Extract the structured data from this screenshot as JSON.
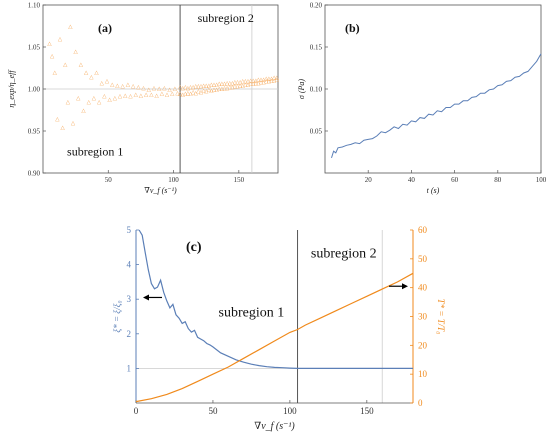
{
  "chart_data": [
    {
      "id": "a",
      "type": "scatter",
      "panel_label": "(a)",
      "ylabel": "η_exp/η_eff",
      "xlabel": "∇v_f (s⁻¹)",
      "xlim": [
        0,
        180
      ],
      "ylim": [
        0.9,
        1.1
      ],
      "xticks": [
        50,
        100,
        150
      ],
      "yticks": [
        0.9,
        0.95,
        1.0,
        1.05,
        1.1
      ],
      "ytick_labels": [
        "0.90",
        "0.95",
        "1.00",
        "1.05",
        "1.10"
      ],
      "marker": "△",
      "color": "#F5A04A",
      "grid_x": [
        160
      ],
      "reference_line_y": 1.0,
      "divider_x": 105,
      "annotations": [
        {
          "text": "subregion 1",
          "x": 40,
          "y": 0.921
        },
        {
          "text": "subregion 2",
          "x": 140,
          "y": 1.08
        }
      ],
      "series": [
        {
          "x": [
            5,
            7,
            9,
            11,
            13,
            15,
            17,
            19,
            21,
            23,
            25,
            27,
            29,
            31,
            33,
            35,
            37,
            39,
            41,
            43,
            45,
            47,
            49,
            51,
            53,
            55,
            57,
            59,
            61,
            63,
            65,
            67,
            69,
            71,
            73,
            75,
            77,
            79,
            81,
            83,
            85,
            87,
            89,
            91,
            93,
            95,
            97,
            99,
            101,
            103,
            105,
            107,
            109,
            111,
            113,
            115,
            117,
            119,
            121,
            123,
            125,
            127,
            129,
            131,
            133,
            135,
            137,
            139,
            141,
            143,
            145,
            147,
            149,
            151,
            153,
            155,
            157,
            159,
            161,
            163,
            165,
            167,
            169,
            171,
            173,
            175,
            177,
            179
          ],
          "y": [
            1.055,
            1.04,
            1.02,
            0.965,
            1.06,
            0.955,
            1.03,
            0.985,
            1.075,
            0.96,
            1.045,
            0.99,
            1.03,
            0.975,
            1.02,
            0.985,
            1.015,
            0.99,
            1.02,
            0.985,
            1.008,
            0.992,
            1.01,
            0.988,
            1.006,
            0.99,
            1.005,
            0.992,
            1.004,
            0.993,
            1.006,
            0.992,
            1.004,
            0.994,
            1.003,
            0.993,
            1.002,
            0.994,
            1.0,
            0.994,
            1.002,
            0.993,
            1.001,
            0.995,
            1.002,
            0.994,
            1.0,
            0.995,
            1.001,
            0.996,
            0.995,
            0.994,
            0.995,
            0.996,
            0.995,
            0.997,
            0.996,
            0.998,
            0.997,
            0.999,
            0.998,
            1.0,
            0.999,
            1.0,
            1.0,
            1.001,
            1.001,
            1.002,
            1.002,
            1.003,
            1.003,
            1.004,
            1.004,
            1.005,
            1.005,
            1.006,
            1.006,
            1.007,
            1.007,
            1.008,
            1.008,
            1.009,
            1.009,
            1.01,
            1.01,
            1.011,
            1.011,
            1.012
          ]
        },
        {
          "x": [
            105,
            107,
            109,
            111,
            113,
            115,
            117,
            119,
            121,
            123,
            125,
            127,
            129,
            131,
            133,
            135,
            137,
            139,
            141,
            143,
            145,
            147,
            149,
            151,
            153,
            155,
            157,
            159,
            161,
            163,
            165,
            167,
            169,
            171,
            173,
            175,
            177,
            179
          ],
          "y": [
            1.003,
            1.002,
            1.003,
            1.002,
            1.003,
            1.003,
            1.004,
            1.004,
            1.004,
            1.005,
            1.005,
            1.005,
            1.006,
            1.006,
            1.006,
            1.007,
            1.007,
            1.007,
            1.008,
            1.008,
            1.008,
            1.009,
            1.009,
            1.009,
            1.01,
            1.01,
            1.01,
            1.011,
            1.011,
            1.011,
            1.012,
            1.012,
            1.012,
            1.013,
            1.013,
            1.013,
            1.014,
            1.014
          ]
        }
      ]
    },
    {
      "id": "b",
      "type": "line",
      "panel_label": "(b)",
      "ylabel": "σ (Pa)",
      "xlabel": "t (s)",
      "xlim": [
        0,
        100
      ],
      "ylim": [
        0,
        0.2
      ],
      "xticks": [
        20,
        40,
        60,
        80,
        100
      ],
      "yticks": [
        0.05,
        0.1,
        0.15,
        0.2
      ],
      "ytick_labels": [
        "0.05",
        "0.10",
        "0.15",
        "0.20"
      ],
      "color": "#5B7FB7",
      "series": [
        {
          "x": [
            3,
            4,
            5,
            6,
            8,
            10,
            12,
            14,
            16,
            18,
            20,
            22,
            24,
            26,
            28,
            30,
            32,
            34,
            36,
            38,
            40,
            42,
            44,
            46,
            48,
            50,
            52,
            54,
            56,
            58,
            60,
            62,
            64,
            66,
            68,
            70,
            72,
            74,
            76,
            78,
            80,
            82,
            84,
            86,
            88,
            90,
            92,
            94,
            96,
            98,
            100
          ],
          "y": [
            0.018,
            0.026,
            0.024,
            0.03,
            0.031,
            0.033,
            0.034,
            0.036,
            0.035,
            0.039,
            0.04,
            0.041,
            0.044,
            0.049,
            0.048,
            0.051,
            0.055,
            0.053,
            0.058,
            0.057,
            0.062,
            0.061,
            0.066,
            0.065,
            0.07,
            0.069,
            0.074,
            0.073,
            0.078,
            0.078,
            0.082,
            0.082,
            0.086,
            0.086,
            0.09,
            0.091,
            0.095,
            0.095,
            0.099,
            0.1,
            0.104,
            0.105,
            0.109,
            0.11,
            0.114,
            0.115,
            0.119,
            0.121,
            0.127,
            0.133,
            0.142
          ]
        }
      ]
    },
    {
      "id": "c",
      "type": "line",
      "panel_label": "(c)",
      "xlabel": "∇v_f (s⁻¹)",
      "xlim": [
        0,
        180
      ],
      "xticks": [
        0,
        50,
        100,
        150
      ],
      "left_axis": {
        "label": "ξ* = ξ/ξ₀",
        "ylim": [
          0,
          5
        ],
        "yticks": [
          1,
          2,
          3,
          4,
          5
        ],
        "color": "#5B7FB7"
      },
      "right_axis": {
        "label": "T* = T/T₀",
        "ylim": [
          0,
          60
        ],
        "yticks": [
          0,
          10,
          20,
          30,
          40,
          50,
          60
        ],
        "color": "#F08A1C"
      },
      "grid_x": [
        160
      ],
      "reference_line_y_left": 1.0,
      "divider_x": 105,
      "annotations": [
        {
          "text": "subregion 1",
          "x": 75,
          "y": 2.5
        },
        {
          "text": "subregion 2",
          "x": 135,
          "y": 4.2
        }
      ],
      "series": [
        {
          "name": "ξ*",
          "axis": "left",
          "x": [
            2,
            4,
            6,
            8,
            10,
            12,
            14,
            16,
            18,
            20,
            22,
            24,
            26,
            28,
            30,
            32,
            34,
            36,
            38,
            40,
            42,
            44,
            46,
            48,
            50,
            55,
            60,
            65,
            70,
            75,
            80,
            85,
            90,
            95,
            100,
            105,
            110,
            120,
            130,
            140,
            150,
            160,
            170,
            180
          ],
          "y": [
            5.0,
            4.85,
            4.35,
            3.85,
            3.45,
            3.3,
            3.35,
            3.55,
            3.2,
            2.95,
            2.75,
            2.85,
            2.55,
            2.45,
            2.3,
            2.35,
            2.15,
            2.05,
            2.1,
            1.9,
            1.85,
            1.8,
            1.72,
            1.68,
            1.62,
            1.45,
            1.35,
            1.25,
            1.18,
            1.12,
            1.08,
            1.05,
            1.03,
            1.02,
            1.01,
            1.0,
            1.0,
            1.0,
            1.0,
            1.0,
            1.0,
            1.0,
            1.0,
            1.0
          ]
        },
        {
          "name": "T*",
          "axis": "right",
          "x": [
            0,
            10,
            20,
            30,
            40,
            50,
            60,
            70,
            80,
            90,
            100,
            105,
            110,
            120,
            130,
            140,
            150,
            160,
            170,
            180
          ],
          "y": [
            0.5,
            1.5,
            3.0,
            5.0,
            7.5,
            10.0,
            12.5,
            15.5,
            18.5,
            21.5,
            24.5,
            25.5,
            27.0,
            29.5,
            32.0,
            34.5,
            37.0,
            39.5,
            42.0,
            45.0
          ]
        }
      ]
    }
  ]
}
